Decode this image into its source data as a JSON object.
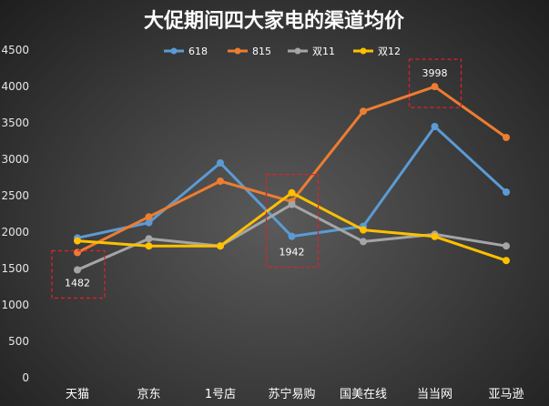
{
  "chart_data": {
    "type": "line",
    "title": "大促期间四大家电的渠道均价",
    "categories": [
      "天猫",
      "京东",
      "1号店",
      "苏宁易购",
      "国美在线",
      "当当网",
      "亚马逊"
    ],
    "ylim": [
      0,
      4500
    ],
    "yticks": [
      0,
      500,
      1000,
      1500,
      2000,
      2500,
      3000,
      3500,
      4000,
      4500
    ],
    "grid": false,
    "legend": "top",
    "series": [
      {
        "name": "618",
        "color": "#5b9bd5",
        "values": [
          1920,
          2130,
          2950,
          1942,
          2080,
          3450,
          2550
        ]
      },
      {
        "name": "815",
        "color": "#ed7d31",
        "values": [
          1720,
          2210,
          2700,
          2420,
          3660,
          3998,
          3300
        ]
      },
      {
        "name": "双11",
        "color": "#a5a5a5",
        "values": [
          1482,
          1910,
          1810,
          2380,
          1870,
          1970,
          1810
        ]
      },
      {
        "name": "双12",
        "color": "#ffc000",
        "values": [
          1880,
          1810,
          1810,
          2540,
          2030,
          1940,
          1610
        ]
      }
    ],
    "annotations": [
      {
        "text": "1482",
        "series": "双11",
        "category": "天猫"
      },
      {
        "text": "1942",
        "series": "618",
        "category": "苏宁易购"
      },
      {
        "text": "3998",
        "series": "815",
        "category": "当当网"
      }
    ]
  }
}
